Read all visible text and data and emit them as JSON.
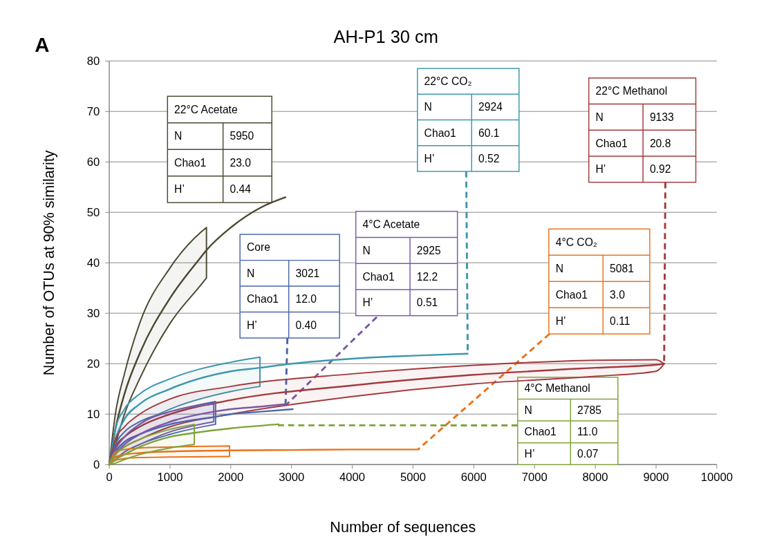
{
  "chart_data": {
    "type": "line",
    "title": "AH-P1 30 cm",
    "xlabel": "Number of sequences",
    "ylabel": "Number of OTUs at 90% similarity",
    "xlim": [
      0,
      10000
    ],
    "xticks": [
      0,
      1000,
      2000,
      3000,
      4000,
      5000,
      6000,
      7000,
      8000,
      9000,
      10000
    ],
    "ylim": [
      0,
      80
    ],
    "yticks": [
      0,
      10,
      20,
      30,
      40,
      50,
      60,
      70,
      80
    ],
    "grid": "y",
    "marker": "none",
    "line_style": "solid",
    "series": [
      {
        "color": "#4b4830",
        "x": [
          0,
          100,
          250,
          500,
          1000,
          1500,
          1600,
          2000,
          2500,
          2900
        ],
        "values": [
          0,
          7,
          14,
          22,
          33,
          41,
          42.5,
          47,
          51,
          53
        ],
        "upper": [
          0,
          10,
          18,
          28,
          39,
          46,
          47,
          null,
          null,
          null
        ],
        "lower": [
          0,
          4,
          10,
          17,
          28,
          35.5,
          37,
          null,
          null,
          null
        ]
      },
      {
        "color": "#3d97ad",
        "x": [
          0,
          100,
          250,
          500,
          1000,
          2000,
          2480,
          3000,
          4000,
          5000,
          5900
        ],
        "values": [
          0,
          5,
          9,
          12,
          15,
          18.5,
          19.2,
          20,
          21,
          21.6,
          22
        ],
        "upper": [
          0,
          7,
          11,
          14,
          17,
          20.3,
          21.3,
          null,
          null,
          null,
          null
        ],
        "lower": [
          0,
          3,
          5.5,
          8,
          11,
          14.5,
          15.5,
          null,
          null,
          null,
          null
        ]
      },
      {
        "color": "#a23a3c",
        "x": [
          0,
          100,
          250,
          500,
          1000,
          2000,
          4000,
          6000,
          8000,
          9000,
          9133
        ],
        "values": [
          0,
          3.5,
          5.5,
          7.5,
          10,
          12.8,
          15.7,
          17.8,
          19.2,
          19.8,
          20
        ],
        "upper": [
          0,
          5,
          7.5,
          10,
          13,
          15.5,
          18,
          19.7,
          20.7,
          20.8,
          20
        ],
        "lower": [
          0,
          2,
          3.5,
          5,
          7.5,
          10,
          13.5,
          16,
          17.5,
          18.5,
          20
        ]
      },
      {
        "color": "#4a66ab",
        "x": [
          0,
          100,
          250,
          500,
          1000,
          1750,
          2000,
          2500,
          3021
        ],
        "values": [
          0,
          2.5,
          4.5,
          6,
          8,
          9.5,
          10,
          10.5,
          11
        ],
        "upper": [
          0,
          4,
          6.5,
          8.5,
          10.5,
          12.5,
          null,
          null,
          null
        ],
        "lower": [
          0,
          1,
          2.5,
          4,
          6,
          8,
          null,
          null,
          null
        ]
      },
      {
        "color": "#7a5aa6",
        "x": [
          0,
          100,
          250,
          500,
          1000,
          1720,
          2000,
          2500,
          2900
        ],
        "values": [
          0,
          2,
          4,
          6,
          8.5,
          10.5,
          11,
          11.5,
          12
        ],
        "upper": [
          0,
          3,
          5.5,
          8,
          10.5,
          12,
          null,
          null,
          null
        ],
        "lower": [
          0,
          1,
          2.5,
          4,
          6.5,
          8.5,
          null,
          null,
          null
        ]
      },
      {
        "color": "#e8731a",
        "x": [
          0,
          100,
          250,
          500,
          1000,
          1980,
          3000,
          4000,
          5081
        ],
        "values": [
          0,
          1.5,
          2,
          2.3,
          2.6,
          2.8,
          2.9,
          3,
          3
        ],
        "upper": [
          0,
          2.5,
          3,
          3.3,
          3.5,
          3.7,
          null,
          null,
          null
        ],
        "lower": [
          0,
          0.8,
          1.2,
          1.4,
          1.5,
          1.6,
          null,
          null,
          null
        ]
      },
      {
        "color": "#7ea33a",
        "x": [
          0,
          100,
          250,
          500,
          1000,
          1400,
          2000,
          2785
        ],
        "values": [
          0,
          1,
          2,
          3.5,
          5.5,
          6.3,
          7.2,
          8
        ],
        "upper": [
          0,
          2,
          3.5,
          5,
          7,
          8,
          null,
          null
        ],
        "lower": [
          0,
          0.3,
          1,
          2,
          3.3,
          4,
          null,
          null
        ]
      }
    ],
    "annotations": [
      "A",
      "22°C Acetate",
      "N",
      "5950",
      "Chao1",
      "23.0",
      "H’",
      "0.44",
      "22°C CO₂",
      "N",
      "2924",
      "Chao1",
      "60.1",
      "H’",
      {
        "text": "0.52",
        "x": 5900,
        "y": 22
      },
      "22°C Methanol",
      "N",
      "9133",
      "Chao1",
      "20.8",
      "H’",
      {
        "text": "0.92",
        "x": 9133,
        "y": 20
      },
      "Core",
      "N",
      "3021",
      "Chao1",
      "12.0",
      "H’",
      {
        "text": "0.40",
        "x": 2900,
        "y": 11
      },
      "4°C Acetate",
      "N",
      "2925",
      "Chao1",
      "12.2",
      {
        "text": "H’",
        "x": 2900,
        "y": 11.7
      },
      "0.51",
      "4°C CO₂",
      "N",
      "5081",
      "Chao1",
      "3.0",
      {
        "text": "H’",
        "x": 5081,
        "y": 3
      },
      "0.11",
      "4°C Methanol",
      "N",
      "2785",
      {
        "text": "Chao1",
        "x": 2750,
        "y": 7.8
      },
      "11.0",
      "H’",
      "0.07"
    ]
  }
}
